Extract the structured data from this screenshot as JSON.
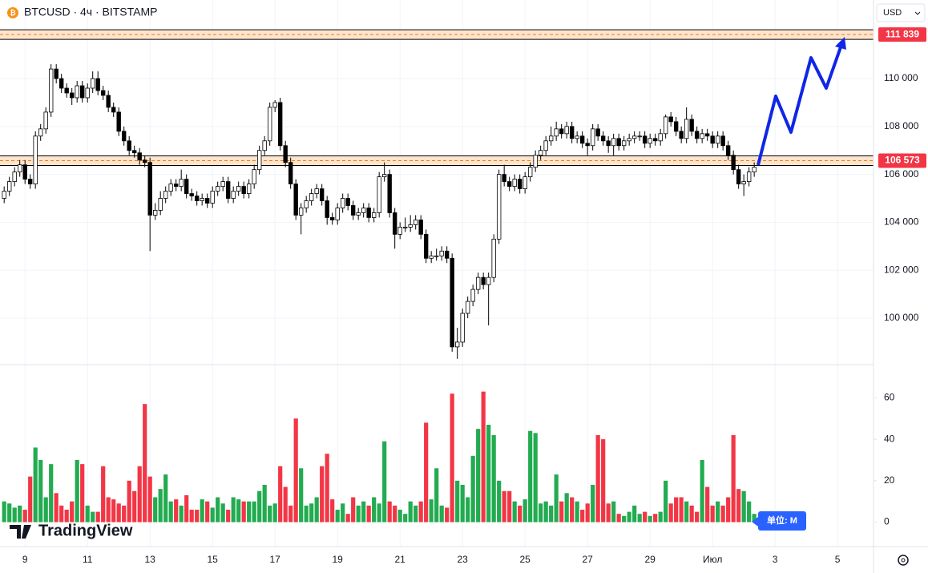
{
  "chart_data": {
    "type": "candlestick",
    "title": "BTCUSD · 4ч · BITSTAMP",
    "currency": "USD",
    "brand": "TradingView",
    "up_color": "#ffffff",
    "down_color": "#000000",
    "grid": true,
    "ylim": [
      98060,
      113280
    ],
    "yticks": [
      {
        "value": 100000,
        "label": "100 000"
      },
      {
        "value": 102000,
        "label": "102 000"
      },
      {
        "value": 104000,
        "label": "104 000"
      },
      {
        "value": 106000,
        "label": "106 000"
      },
      {
        "value": 108000,
        "label": "108 000"
      },
      {
        "value": 110000,
        "label": "110 000"
      }
    ],
    "xlim": [
      -0.8,
      166.9
    ],
    "xticks": [
      {
        "value": 4,
        "label": "9"
      },
      {
        "value": 16,
        "label": "11"
      },
      {
        "value": 28,
        "label": "13"
      },
      {
        "value": 40,
        "label": "15"
      },
      {
        "value": 52,
        "label": "17"
      },
      {
        "value": 64,
        "label": "19"
      },
      {
        "value": 76,
        "label": "21"
      },
      {
        "value": 88,
        "label": "23"
      },
      {
        "value": 100,
        "label": "25"
      },
      {
        "value": 112,
        "label": "27"
      },
      {
        "value": 124,
        "label": "29"
      },
      {
        "value": 136,
        "label": "Июл"
      },
      {
        "value": 148,
        "label": "3"
      },
      {
        "value": 160,
        "label": "5"
      }
    ],
    "levels": [
      {
        "value": 111839,
        "label": "111 839"
      },
      {
        "value": 106573,
        "label": "106 573"
      }
    ],
    "ohlc": [
      [
        105000,
        105500,
        104800,
        105300
      ],
      [
        105300,
        105900,
        105100,
        105700
      ],
      [
        105700,
        106300,
        105500,
        106100
      ],
      [
        106100,
        106600,
        105900,
        106400
      ],
      [
        106400,
        106600,
        105600,
        105800
      ],
      [
        105800,
        106000,
        105400,
        105600
      ],
      [
        105600,
        107800,
        105400,
        107600
      ],
      [
        107600,
        108100,
        107400,
        107900
      ],
      [
        107900,
        108800,
        107700,
        108600
      ],
      [
        108600,
        110600,
        108400,
        110400
      ],
      [
        110400,
        110600,
        109800,
        110000
      ],
      [
        110000,
        110200,
        109400,
        109600
      ],
      [
        109600,
        109800,
        109200,
        109400
      ],
      [
        109400,
        109600,
        108900,
        109200
      ],
      [
        109200,
        109900,
        109000,
        109700
      ],
      [
        109700,
        109900,
        109000,
        109200
      ],
      [
        109200,
        109800,
        109000,
        109600
      ],
      [
        109600,
        110300,
        109400,
        110000
      ],
      [
        110000,
        110300,
        109300,
        109500
      ],
      [
        109500,
        109700,
        109100,
        109300
      ],
      [
        109300,
        109500,
        108600,
        108800
      ],
      [
        108800,
        109000,
        108400,
        108600
      ],
      [
        108600,
        108800,
        107600,
        107800
      ],
      [
        107800,
        108000,
        107200,
        107400
      ],
      [
        107400,
        107600,
        106800,
        107000
      ],
      [
        107000,
        107200,
        106700,
        106900
      ],
      [
        106900,
        107100,
        106400,
        106600
      ],
      [
        106600,
        106800,
        106300,
        106500
      ],
      [
        106500,
        106700,
        102800,
        104300
      ],
      [
        104300,
        104800,
        104100,
        104500
      ],
      [
        104500,
        105300,
        104300,
        105000
      ],
      [
        105000,
        105500,
        104800,
        105300
      ],
      [
        105300,
        105800,
        105100,
        105600
      ],
      [
        105600,
        105800,
        105300,
        105500
      ],
      [
        105500,
        106200,
        105300,
        105800
      ],
      [
        105800,
        106000,
        105000,
        105200
      ],
      [
        105200,
        105400,
        104900,
        105100
      ],
      [
        105100,
        105300,
        104700,
        104900
      ],
      [
        104900,
        105200,
        104700,
        105000
      ],
      [
        105000,
        105200,
        104600,
        104800
      ],
      [
        104800,
        105500,
        104600,
        105300
      ],
      [
        105300,
        105700,
        105100,
        105500
      ],
      [
        105500,
        105900,
        105300,
        105700
      ],
      [
        105700,
        105900,
        104800,
        105000
      ],
      [
        105000,
        105500,
        104800,
        105300
      ],
      [
        105300,
        105700,
        105100,
        105500
      ],
      [
        105500,
        105700,
        105000,
        105200
      ],
      [
        105200,
        105800,
        105000,
        105600
      ],
      [
        105600,
        106400,
        105400,
        106200
      ],
      [
        106200,
        107200,
        106000,
        107000
      ],
      [
        107000,
        107600,
        106800,
        107400
      ],
      [
        107400,
        109000,
        107200,
        108800
      ],
      [
        108800,
        109100,
        108600,
        109000
      ],
      [
        109000,
        109200,
        107000,
        107200
      ],
      [
        107200,
        107400,
        106300,
        106500
      ],
      [
        106500,
        106700,
        105400,
        105600
      ],
      [
        105600,
        105800,
        104100,
        104300
      ],
      [
        104300,
        104800,
        103500,
        104600
      ],
      [
        104600,
        105100,
        104400,
        104900
      ],
      [
        104900,
        105400,
        104700,
        105200
      ],
      [
        105200,
        105600,
        105000,
        105400
      ],
      [
        105400,
        105600,
        104700,
        104900
      ],
      [
        104900,
        105100,
        103900,
        104200
      ],
      [
        104200,
        104400,
        103900,
        104100
      ],
      [
        104100,
        104800,
        103900,
        104600
      ],
      [
        104600,
        105200,
        104400,
        105000
      ],
      [
        105000,
        105200,
        104500,
        104700
      ],
      [
        104700,
        104900,
        104100,
        104300
      ],
      [
        104300,
        104600,
        104100,
        104400
      ],
      [
        104400,
        104800,
        104200,
        104600
      ],
      [
        104600,
        104800,
        104000,
        104200
      ],
      [
        104200,
        104600,
        104000,
        104400
      ],
      [
        104400,
        106100,
        104200,
        105900
      ],
      [
        105900,
        106500,
        105700,
        106000
      ],
      [
        106000,
        106200,
        104200,
        104400
      ],
      [
        104400,
        104600,
        102900,
        103500
      ],
      [
        103500,
        104000,
        103300,
        103800
      ],
      [
        103800,
        104200,
        103600,
        103800
      ],
      [
        103800,
        104300,
        103600,
        103900
      ],
      [
        103900,
        104300,
        103700,
        104100
      ],
      [
        104100,
        104300,
        103300,
        103500
      ],
      [
        103500,
        103700,
        102300,
        102500
      ],
      [
        102500,
        102800,
        102300,
        102600
      ],
      [
        102600,
        102900,
        102400,
        102600
      ],
      [
        102600,
        103000,
        102400,
        102800
      ],
      [
        102800,
        103000,
        102300,
        102500
      ],
      [
        102500,
        102700,
        98600,
        98800
      ],
      [
        98800,
        99600,
        98300,
        99000
      ],
      [
        99000,
        100400,
        98800,
        100200
      ],
      [
        100200,
        100900,
        100000,
        100700
      ],
      [
        100700,
        101400,
        100500,
        101200
      ],
      [
        101200,
        101900,
        101000,
        101700
      ],
      [
        101700,
        101900,
        101200,
        101400
      ],
      [
        101400,
        101900,
        99700,
        101700
      ],
      [
        101700,
        103500,
        101500,
        103300
      ],
      [
        103300,
        106200,
        103100,
        106000
      ],
      [
        106000,
        106400,
        105500,
        105700
      ],
      [
        105700,
        105900,
        105300,
        105500
      ],
      [
        105500,
        106000,
        105300,
        105800
      ],
      [
        105800,
        106000,
        105200,
        105400
      ],
      [
        105400,
        106100,
        105200,
        105900
      ],
      [
        105900,
        106500,
        105700,
        106300
      ],
      [
        106300,
        107000,
        106100,
        106800
      ],
      [
        106800,
        107200,
        106600,
        107000
      ],
      [
        107000,
        107600,
        106800,
        107400
      ],
      [
        107400,
        108000,
        107200,
        107600
      ],
      [
        107600,
        108200,
        107400,
        107900
      ],
      [
        107900,
        108100,
        107500,
        107700
      ],
      [
        107700,
        108200,
        107500,
        108000
      ],
      [
        108000,
        108200,
        107300,
        107500
      ],
      [
        107500,
        107800,
        107300,
        107600
      ],
      [
        107600,
        107800,
        107100,
        107300
      ],
      [
        107300,
        107500,
        106800,
        107200
      ],
      [
        107200,
        108100,
        107000,
        107900
      ],
      [
        107900,
        108100,
        107400,
        107600
      ],
      [
        107600,
        107800,
        107200,
        107400
      ],
      [
        107400,
        107600,
        106900,
        107200
      ],
      [
        107200,
        107700,
        106800,
        107500
      ],
      [
        107500,
        107700,
        107000,
        107200
      ],
      [
        107200,
        107600,
        107000,
        107400
      ],
      [
        107400,
        107700,
        107200,
        107500
      ],
      [
        107500,
        107800,
        107300,
        107600
      ],
      [
        107600,
        107800,
        107400,
        107600
      ],
      [
        107600,
        107800,
        107100,
        107300
      ],
      [
        107300,
        107700,
        107100,
        107500
      ],
      [
        107500,
        107700,
        107200,
        107400
      ],
      [
        107400,
        107900,
        107200,
        107700
      ],
      [
        107700,
        108500,
        107500,
        108400
      ],
      [
        108400,
        108600,
        108000,
        108200
      ],
      [
        108200,
        108400,
        107600,
        107800
      ],
      [
        107800,
        108000,
        107300,
        107500
      ],
      [
        107500,
        108800,
        107300,
        108300
      ],
      [
        108300,
        108500,
        107600,
        107800
      ],
      [
        107800,
        108000,
        107300,
        107500
      ],
      [
        107500,
        107900,
        107300,
        107700
      ],
      [
        107700,
        107900,
        107400,
        107600
      ],
      [
        107600,
        107800,
        107100,
        107300
      ],
      [
        107300,
        107800,
        107100,
        107600
      ],
      [
        107600,
        107800,
        107000,
        107200
      ],
      [
        107200,
        107400,
        106600,
        106800
      ],
      [
        106800,
        107000,
        106000,
        106200
      ],
      [
        106200,
        106400,
        105400,
        105600
      ],
      [
        105600,
        106000,
        105100,
        105700
      ],
      [
        105700,
        106300,
        105500,
        106100
      ],
      [
        106100,
        106500,
        105900,
        106300
      ]
    ],
    "volume": {
      "unit_label": "单位: M",
      "up_color": "#22ab50",
      "down_color": "#f23645",
      "ylim": [
        -11,
        76
      ],
      "yticks": [
        0,
        20,
        40,
        60
      ],
      "values": [
        10,
        9,
        7,
        8,
        6,
        22,
        36,
        30,
        12,
        28,
        14,
        8,
        6,
        10,
        30,
        28,
        8,
        5,
        5,
        27,
        12,
        11,
        9,
        8,
        20,
        15,
        27,
        57,
        22,
        12,
        16,
        23,
        10,
        11,
        8,
        13,
        6,
        6,
        11,
        10,
        7,
        12,
        9,
        6,
        12,
        11,
        10,
        10,
        10,
        15,
        18,
        8,
        9,
        27,
        17,
        8,
        50,
        26,
        8,
        9,
        12,
        27,
        33,
        11,
        6,
        9,
        4,
        12,
        8,
        10,
        8,
        12,
        9,
        39,
        10,
        8,
        6,
        4,
        10,
        8,
        10,
        48,
        11,
        26,
        8,
        7,
        62,
        20,
        18,
        12,
        32,
        45,
        63,
        47,
        42,
        20,
        15,
        15,
        10,
        8,
        11,
        44,
        43,
        9,
        10,
        8,
        23,
        10,
        14,
        12,
        10,
        6,
        9,
        18,
        42,
        40,
        9,
        10,
        4,
        3,
        5,
        8,
        4,
        5,
        3,
        4,
        5,
        20,
        9,
        12,
        12,
        10,
        8,
        5,
        30,
        17,
        8,
        10,
        8,
        12,
        42,
        16,
        15,
        10,
        4
      ]
    }
  }
}
